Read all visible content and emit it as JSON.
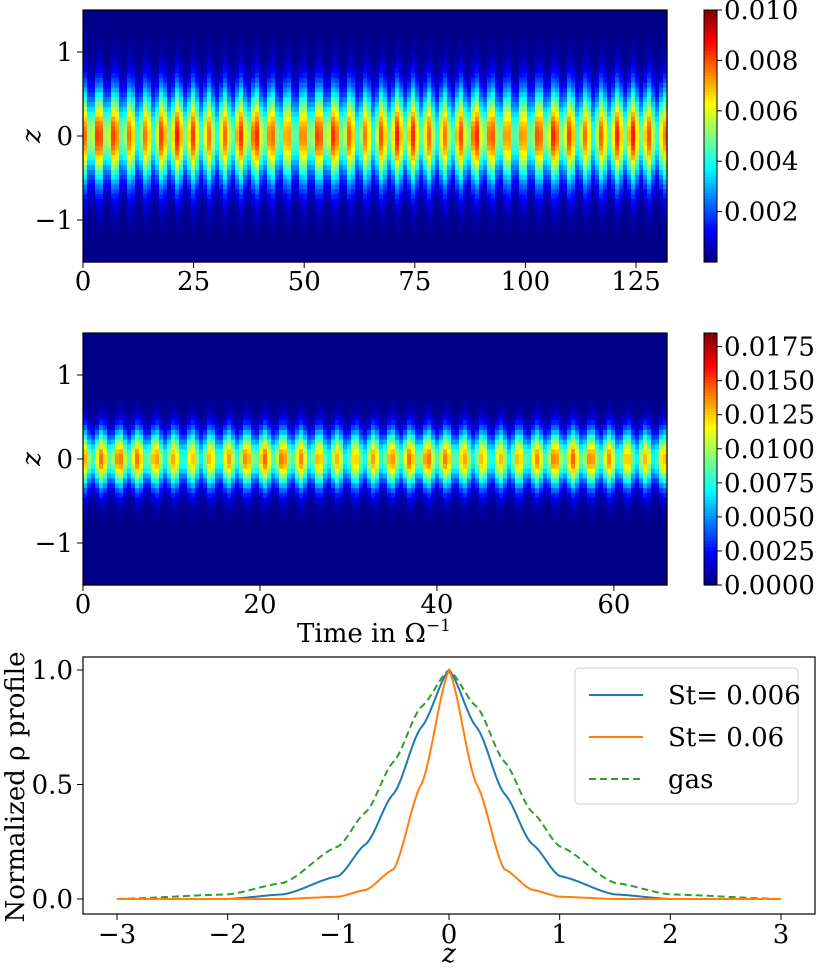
{
  "chart_data": [
    {
      "id": "heatmap-top",
      "type": "heatmap",
      "xlabel": "",
      "ylabel": "z",
      "xlim": [
        0,
        132
      ],
      "ylim": [
        -1.5,
        1.5
      ],
      "xticks": [
        0,
        25,
        50,
        75,
        100,
        125
      ],
      "xtick_labels": [
        "0",
        "25",
        "50",
        "75",
        "100",
        "125"
      ],
      "yticks": [
        1,
        0,
        -1
      ],
      "ytick_labels": [
        "1",
        "0",
        "−1"
      ],
      "colormap": "jet",
      "colorbar": {
        "range": [
          0.0,
          0.01
        ],
        "ticks": [
          0.002,
          0.004,
          0.006,
          0.008,
          0.01
        ],
        "tick_labels": [
          "0.002",
          "0.004",
          "0.006",
          "0.008",
          "0.010"
        ]
      },
      "peak_density_at_midplane": 0.008,
      "profile_width": 0.36,
      "oscillation_period": 3.55
    },
    {
      "id": "heatmap-middle",
      "type": "heatmap",
      "xlabel": "Time in Ω",
      "xlabel_sup": "−1",
      "ylabel": "z",
      "xlim": [
        0,
        66
      ],
      "ylim": [
        -1.5,
        1.5
      ],
      "xticks": [
        0,
        20,
        40,
        60
      ],
      "xtick_labels": [
        "0",
        "20",
        "40",
        "60"
      ],
      "yticks": [
        1,
        0,
        -1
      ],
      "ytick_labels": [
        "1",
        "0",
        "−1"
      ],
      "colormap": "jet",
      "colorbar": {
        "range": [
          0.0,
          0.0185
        ],
        "ticks": [
          0.0,
          0.0025,
          0.005,
          0.0075,
          0.01,
          0.0125,
          0.015,
          0.0175
        ],
        "tick_labels": [
          "0.0000",
          "0.0025",
          "0.0050",
          "0.0075",
          "0.0100",
          "0.0125",
          "0.0150",
          "0.0175"
        ]
      },
      "peak_density_at_midplane": 0.0135,
      "profile_width": 0.22,
      "oscillation_period": 2.05
    },
    {
      "id": "line-bottom",
      "type": "line",
      "xlabel": "z",
      "ylabel": "Normalized ρ profile",
      "xlim": [
        -3,
        3
      ],
      "ylim": [
        0,
        1
      ],
      "xticks": [
        -3,
        -2,
        -1,
        0,
        1,
        2,
        3
      ],
      "xtick_labels": [
        "−3",
        "−2",
        "−1",
        "0",
        "1",
        "2",
        "3"
      ],
      "yticks": [
        0.0,
        0.5,
        1.0
      ],
      "ytick_labels": [
        "0.0",
        "0.5",
        "1.0"
      ],
      "legend_placement": "upper right",
      "series": [
        {
          "name": "St= 0.006",
          "color": "#1f77b4",
          "dashed": false,
          "x": [
            -3,
            -2,
            -1.5,
            -1,
            -0.75,
            -0.5,
            -0.25,
            0,
            0.25,
            0.5,
            0.75,
            1,
            1.5,
            2,
            3
          ],
          "y": [
            0.0,
            0.0,
            0.02,
            0.1,
            0.24,
            0.46,
            0.75,
            1.0,
            0.75,
            0.46,
            0.24,
            0.1,
            0.02,
            0.0,
            0.0
          ]
        },
        {
          "name": "St= 0.06",
          "color": "#ff7f0e",
          "dashed": false,
          "x": [
            -3,
            -2,
            -1.5,
            -1,
            -0.75,
            -0.5,
            -0.25,
            0,
            0.25,
            0.5,
            0.75,
            1,
            1.5,
            2,
            3
          ],
          "y": [
            0.0,
            0.0,
            0.0,
            0.01,
            0.04,
            0.13,
            0.5,
            1.0,
            0.5,
            0.13,
            0.04,
            0.01,
            0.0,
            0.0,
            0.0
          ]
        },
        {
          "name": "gas",
          "color": "#2ca02c",
          "dashed": true,
          "x": [
            -3,
            -2,
            -1.5,
            -1,
            -0.75,
            -0.5,
            -0.25,
            0,
            0.25,
            0.5,
            0.75,
            1,
            1.5,
            2,
            3
          ],
          "y": [
            0.0,
            0.02,
            0.07,
            0.23,
            0.38,
            0.6,
            0.84,
            1.0,
            0.84,
            0.6,
            0.38,
            0.23,
            0.07,
            0.02,
            0.0
          ]
        }
      ]
    }
  ]
}
